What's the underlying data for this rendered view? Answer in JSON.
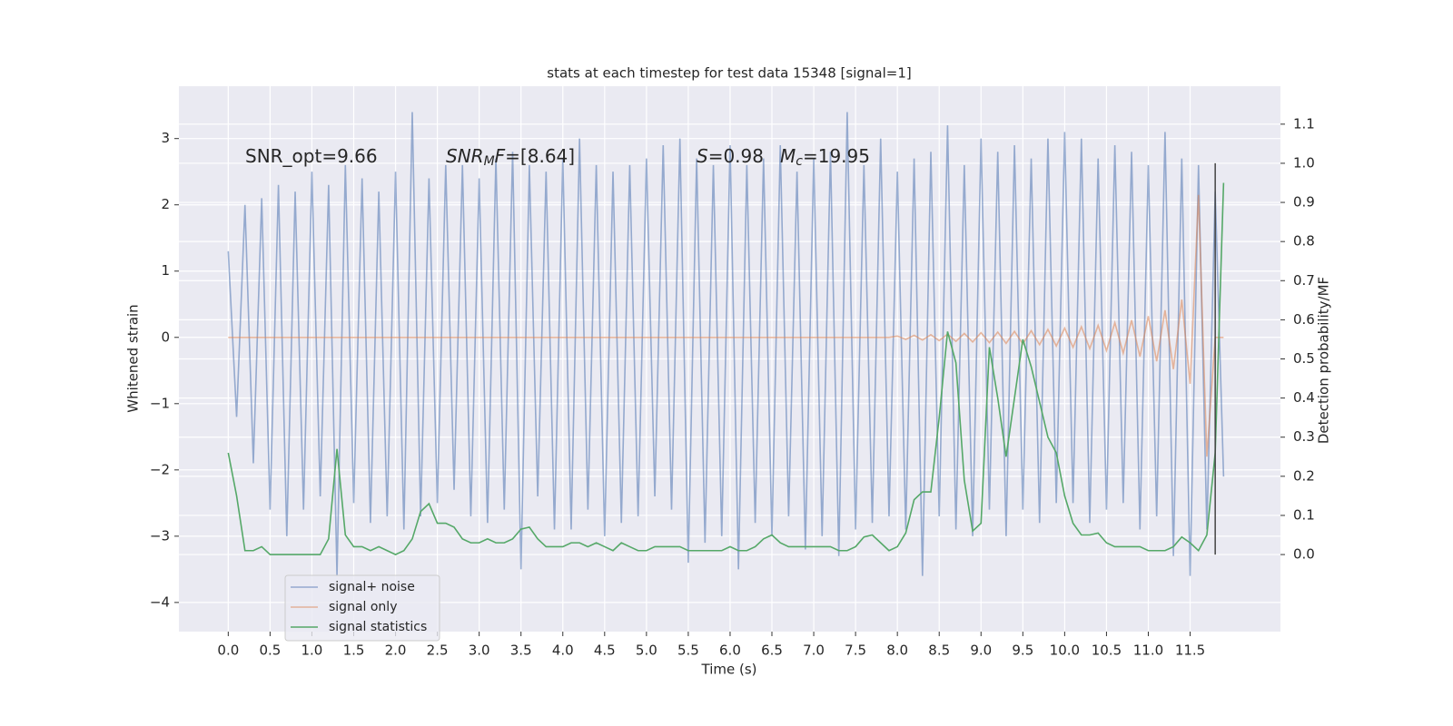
{
  "chart_data": {
    "type": "line",
    "title": "stats at each timestep for test data 15348 [signal=1]",
    "xlabel": "Time (s)",
    "ylabel": "Whitened strain",
    "y2label": "Detection probability/MF",
    "x": [
      0.0,
      0.1,
      0.2,
      0.3,
      0.4,
      0.5,
      0.6,
      0.7,
      0.8,
      0.9,
      1.0,
      1.1,
      1.2,
      1.3,
      1.4,
      1.5,
      1.6,
      1.7,
      1.8,
      1.9,
      2.0,
      2.1,
      2.2,
      2.3,
      2.4,
      2.5,
      2.6,
      2.7,
      2.8,
      2.9,
      3.0,
      3.1,
      3.2,
      3.3,
      3.4,
      3.5,
      3.6,
      3.7,
      3.8,
      3.9,
      4.0,
      4.1,
      4.2,
      4.3,
      4.4,
      4.5,
      4.6,
      4.7,
      4.8,
      4.9,
      5.0,
      5.1,
      5.2,
      5.3,
      5.4,
      5.5,
      5.6,
      5.7,
      5.8,
      5.9,
      6.0,
      6.1,
      6.2,
      6.3,
      6.4,
      6.5,
      6.6,
      6.7,
      6.8,
      6.9,
      7.0,
      7.1,
      7.2,
      7.3,
      7.4,
      7.5,
      7.6,
      7.7,
      7.8,
      7.9,
      8.0,
      8.1,
      8.2,
      8.3,
      8.4,
      8.5,
      8.6,
      8.7,
      8.8,
      8.9,
      9.0,
      9.1,
      9.2,
      9.3,
      9.4,
      9.5,
      9.6,
      9.7,
      9.8,
      9.9,
      10.0,
      10.1,
      10.2,
      10.3,
      10.4,
      10.5,
      10.6,
      10.7,
      10.8,
      10.9,
      11.0,
      11.1,
      11.2,
      11.3,
      11.4,
      11.5,
      11.6,
      11.7,
      11.8,
      11.9
    ],
    "series": [
      {
        "name": "signal+ noise",
        "color": "#4c72b0",
        "opacity": 0.55,
        "axis": "y",
        "values": [
          1.3,
          -1.2,
          2.0,
          -1.9,
          2.1,
          -2.6,
          2.3,
          -3.0,
          2.2,
          -2.6,
          2.5,
          -2.4,
          2.3,
          -3.6,
          2.6,
          -2.5,
          2.4,
          -2.8,
          2.2,
          -2.7,
          2.5,
          -2.9,
          3.4,
          -2.7,
          2.4,
          -2.5,
          2.6,
          -2.3,
          2.6,
          -2.7,
          2.4,
          -2.8,
          2.7,
          -2.6,
          2.8,
          -3.5,
          2.6,
          -2.4,
          2.5,
          -2.9,
          2.7,
          -2.9,
          3.0,
          -2.6,
          2.6,
          -3.0,
          2.5,
          -2.8,
          2.6,
          -2.7,
          2.7,
          -2.4,
          2.9,
          -2.6,
          3.0,
          -3.4,
          2.7,
          -3.1,
          2.6,
          -3.0,
          2.9,
          -3.5,
          2.6,
          -2.8,
          2.7,
          -3.0,
          2.9,
          -2.7,
          2.5,
          -3.2,
          2.7,
          -3.0,
          2.8,
          -3.3,
          3.4,
          -2.9,
          2.6,
          -2.8,
          3.0,
          -2.7,
          2.5,
          -2.9,
          2.7,
          -3.6,
          2.8,
          -2.7,
          3.2,
          -2.9,
          2.6,
          -3.0,
          3.0,
          -2.6,
          2.8,
          -3.0,
          2.9,
          -2.6,
          2.7,
          -2.8,
          3.0,
          -2.5,
          3.1,
          -2.5,
          3.0,
          -2.8,
          2.7,
          -2.6,
          2.9,
          -2.5,
          2.8,
          -2.9,
          2.6,
          -2.7,
          3.1,
          -3.3,
          2.7,
          -3.6,
          2.6,
          -2.9,
          2.2,
          -2.1
        ]
      },
      {
        "name": "signal only",
        "color": "#dd8452",
        "opacity": 0.55,
        "axis": "y",
        "values": [
          0,
          0,
          0,
          0,
          0,
          0,
          0,
          0,
          0,
          0,
          0,
          0,
          0,
          0,
          0,
          0,
          0,
          0,
          0,
          0,
          0,
          0,
          0,
          0,
          0,
          0,
          0,
          0,
          0,
          0,
          0,
          0,
          0,
          0,
          0,
          0,
          0,
          0,
          0,
          0,
          0,
          0,
          0,
          0,
          0,
          0,
          0,
          0,
          0,
          0,
          0,
          0,
          0,
          0,
          0,
          0,
          0,
          0,
          0,
          0,
          0,
          0,
          0,
          0,
          0,
          0,
          0,
          0,
          0,
          0,
          0,
          0,
          0,
          0,
          0,
          0,
          0,
          0,
          0,
          0,
          0.02,
          -0.03,
          0.03,
          -0.04,
          0.04,
          -0.05,
          0.05,
          -0.06,
          0.06,
          -0.07,
          0.07,
          -0.08,
          0.08,
          -0.09,
          0.09,
          -0.1,
          0.1,
          -0.11,
          0.12,
          -0.13,
          0.14,
          -0.15,
          0.16,
          -0.17,
          0.18,
          -0.2,
          0.22,
          -0.24,
          0.26,
          -0.29,
          0.32,
          -0.36,
          0.41,
          -0.48,
          0.57,
          -0.7,
          2.15,
          -1.8,
          0,
          0
        ]
      },
      {
        "name": "signal statistics",
        "color": "#55a868",
        "opacity": 1,
        "axis": "y2",
        "values": [
          0.26,
          0.15,
          0.01,
          0.01,
          0.02,
          0.0,
          0.0,
          0.0,
          0.0,
          0.0,
          0.0,
          0.0,
          0.04,
          0.27,
          0.05,
          0.02,
          0.02,
          0.01,
          0.02,
          0.01,
          0.0,
          0.01,
          0.04,
          0.11,
          0.13,
          0.08,
          0.08,
          0.07,
          0.04,
          0.03,
          0.03,
          0.04,
          0.03,
          0.03,
          0.04,
          0.065,
          0.07,
          0.04,
          0.02,
          0.02,
          0.02,
          0.03,
          0.03,
          0.02,
          0.03,
          0.02,
          0.01,
          0.03,
          0.02,
          0.01,
          0.01,
          0.02,
          0.02,
          0.02,
          0.02,
          0.01,
          0.01,
          0.01,
          0.01,
          0.01,
          0.02,
          0.01,
          0.01,
          0.02,
          0.04,
          0.05,
          0.03,
          0.02,
          0.02,
          0.02,
          0.02,
          0.02,
          0.02,
          0.01,
          0.01,
          0.02,
          0.045,
          0.05,
          0.03,
          0.01,
          0.02,
          0.055,
          0.14,
          0.16,
          0.16,
          0.35,
          0.57,
          0.49,
          0.19,
          0.06,
          0.08,
          0.53,
          0.4,
          0.25,
          0.4,
          0.55,
          0.48,
          0.39,
          0.3,
          0.26,
          0.15,
          0.08,
          0.05,
          0.05,
          0.055,
          0.03,
          0.02,
          0.02,
          0.02,
          0.02,
          0.01,
          0.01,
          0.01,
          0.02,
          0.045,
          0.03,
          0.01,
          0.05,
          0.26,
          0.95
        ]
      }
    ],
    "vline": {
      "x": 11.8,
      "ymin": 0,
      "ymax": 1,
      "color": "#444444"
    },
    "annotations": [
      {
        "parts": [
          {
            "text": "SNR_opt=9.66"
          }
        ]
      },
      {
        "parts": [
          {
            "text": "SNR",
            "italic": true
          },
          {
            "text": "M",
            "italic": true,
            "sub": true
          },
          {
            "text": "F",
            "italic": true
          },
          {
            "text": "=[8.64]"
          }
        ]
      },
      {
        "parts": [
          {
            "text": "S",
            "italic": true
          },
          {
            "text": "=0.98"
          }
        ]
      },
      {
        "parts": [
          {
            "text": "M",
            "italic": true
          },
          {
            "text": "c",
            "italic": true,
            "sub": true
          },
          {
            "text": "=19.95"
          }
        ]
      }
    ],
    "xlim": [
      -0.59,
      12.58
    ],
    "ylim": [
      -4.44,
      3.79
    ],
    "y2lim": [
      -0.197,
      1.197
    ],
    "xticks": [
      {
        "value": 0,
        "label": "0.0"
      },
      0.5,
      {
        "value": 1,
        "label": "1.0"
      },
      1.5,
      {
        "value": 2,
        "label": "2.0"
      },
      2.5,
      {
        "value": 3,
        "label": "3.0"
      },
      3.5,
      {
        "value": 4,
        "label": "4.0"
      },
      4.5,
      {
        "value": 5,
        "label": "5.0"
      },
      5.5,
      {
        "value": 6,
        "label": "6.0"
      },
      6.5,
      {
        "value": 7,
        "label": "7.0"
      },
      7.5,
      {
        "value": 8,
        "label": "8.0"
      },
      8.5,
      {
        "value": 9,
        "label": "9.0"
      },
      9.5,
      {
        "value": 10,
        "label": "10.0"
      },
      10.5,
      {
        "value": 11,
        "label": "11.0"
      },
      11.5
    ],
    "yticks": [
      {
        "value": -4,
        "label": "−4"
      },
      {
        "value": -3,
        "label": "−3"
      },
      {
        "value": -2,
        "label": "−2"
      },
      {
        "value": -1,
        "label": "−1"
      },
      0,
      1,
      2,
      3
    ],
    "y2ticks": [
      {
        "value": 0,
        "label": "0.0"
      },
      0.1,
      0.2,
      0.3,
      0.4,
      0.5,
      0.6,
      0.7,
      0.8,
      0.9,
      {
        "value": 1,
        "label": "1.0"
      },
      1.1
    ],
    "grid": true,
    "legend": "lower left",
    "background": "#eaeaf2"
  }
}
